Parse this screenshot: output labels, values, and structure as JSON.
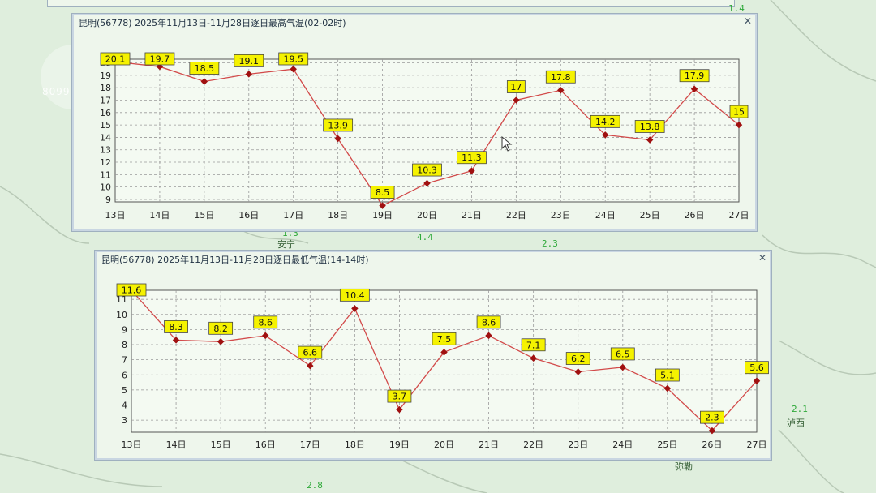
{
  "window_high": {
    "title": "昆明(56778)  2025年11月13日-11月28日逐日最高气温(02-02时)"
  },
  "window_low": {
    "title": "昆明(56778)  2025年11月13日-11月28日逐日最低气温(14-14时)"
  },
  "map": {
    "labels": [
      "安宁",
      "泸西",
      "弥勒"
    ],
    "values": [
      "1.3",
      "4.4",
      "2.3",
      "2.1",
      "2.8",
      "1.4"
    ]
  },
  "watermark": "8099999",
  "chart_data": [
    {
      "type": "line",
      "title": "昆明(56778)  2025年11月13日-11月28日逐日最高气温(02-02时)",
      "categories": [
        "13日",
        "14日",
        "15日",
        "16日",
        "17日",
        "18日",
        "19日",
        "20日",
        "21日",
        "22日",
        "23日",
        "24日",
        "25日",
        "26日",
        "27日"
      ],
      "values": [
        20.1,
        19.7,
        18.5,
        19.1,
        19.5,
        13.9,
        8.5,
        10.3,
        11.3,
        17,
        17.8,
        14.2,
        13.8,
        17.9,
        15
      ],
      "labels": [
        "20.1",
        "19.7",
        "18.5",
        "19.1",
        "19.5",
        "13.9",
        "8.5",
        "10.3",
        "11.3",
        "17",
        "17.8",
        "14.2",
        "13.8",
        "17.9",
        "15"
      ],
      "yticks": [
        "9",
        "10",
        "11",
        "12",
        "13",
        "14",
        "15",
        "16",
        "17",
        "18",
        "19",
        "20"
      ],
      "ylim": [
        8.8,
        20.3
      ],
      "grid": true,
      "line_color": "#d24a4a",
      "marker_color": "#a01010",
      "label_bg": "#f5f200"
    },
    {
      "type": "line",
      "title": "昆明(56778)  2025年11月13日-11月28日逐日最低气温(14-14时)",
      "categories": [
        "13日",
        "14日",
        "15日",
        "16日",
        "17日",
        "18日",
        "19日",
        "20日",
        "21日",
        "22日",
        "23日",
        "24日",
        "25日",
        "26日",
        "27日"
      ],
      "values": [
        11.6,
        8.3,
        8.2,
        8.6,
        6.6,
        10.4,
        3.7,
        7.5,
        8.6,
        7.1,
        6.2,
        6.5,
        5.1,
        2.3,
        5.6
      ],
      "labels": [
        "11.6",
        "8.3",
        "8.2",
        "8.6",
        "6.6",
        "10.4",
        "3.7",
        "7.5",
        "8.6",
        "7.1",
        "6.2",
        "6.5",
        "5.1",
        "2.3",
        "5.6"
      ],
      "yticks": [
        "3",
        "4",
        "5",
        "6",
        "7",
        "8",
        "9",
        "10",
        "11"
      ],
      "ylim": [
        2.2,
        11.6
      ],
      "grid": true,
      "line_color": "#d24a4a",
      "marker_color": "#a01010",
      "label_bg": "#f5f200"
    }
  ]
}
